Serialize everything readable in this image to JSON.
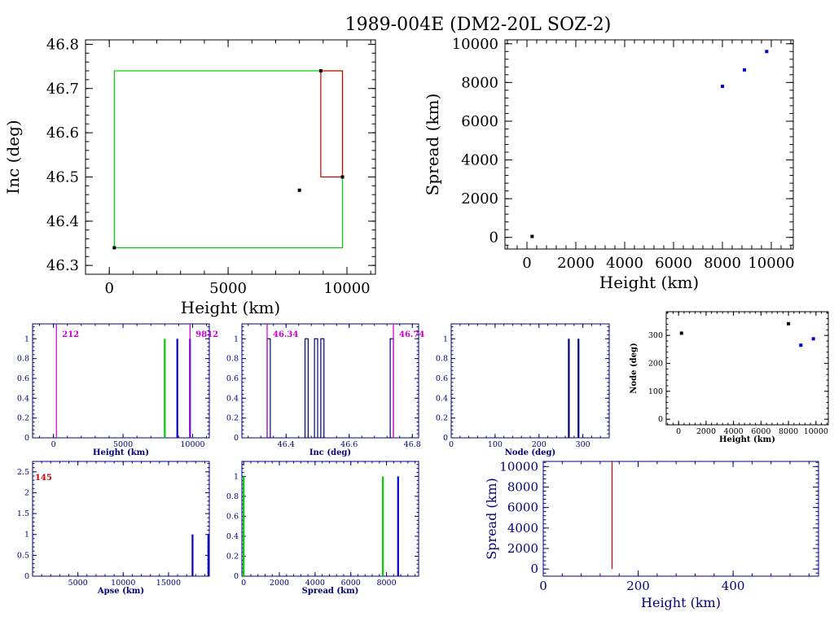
{
  "page": {
    "title": "1989-004E (DM2-20L SOZ-2)"
  },
  "colors": {
    "axis_black": "#000000",
    "axis_navy": "#000080",
    "blue": "#0000cc",
    "green": "#00cc00",
    "red": "#cc0000",
    "magenta": "#cc00cc"
  },
  "chart_data": [
    {
      "id": "inc-height",
      "type": "scatter",
      "xlabel": "Height (km)",
      "ylabel": "Inc (deg)",
      "xlim": [
        -1000,
        11200
      ],
      "ylim": [
        46.28,
        46.81
      ],
      "xticks": [
        0,
        5000,
        10000
      ],
      "yticks": [
        46.3,
        46.4,
        46.5,
        46.6,
        46.7,
        46.8
      ],
      "points": [
        [
          212,
          46.34
        ],
        [
          8000,
          46.47
        ],
        [
          8900,
          46.74
        ],
        [
          9812,
          46.5
        ]
      ],
      "boxes": [
        {
          "color": "green",
          "x": [
            212,
            9812
          ],
          "y": [
            46.34,
            46.74
          ]
        },
        {
          "color": "red",
          "x": [
            8900,
            9812
          ],
          "y": [
            46.5,
            46.74
          ]
        }
      ]
    },
    {
      "id": "spread-height",
      "type": "scatter",
      "xlabel": "Height (km)",
      "ylabel": "Spread (km)",
      "xlim": [
        -900,
        10900
      ],
      "ylim": [
        -600,
        10200
      ],
      "xticks": [
        0,
        2000,
        4000,
        6000,
        8000,
        10000
      ],
      "yticks": [
        0,
        2000,
        4000,
        6000,
        8000,
        10000
      ],
      "points": [
        [
          212,
          50
        ],
        [
          8000,
          7800
        ],
        [
          8900,
          8650
        ],
        [
          9812,
          9600
        ]
      ]
    },
    {
      "id": "hist-height",
      "type": "bar",
      "xlabel": "Height (km)",
      "xlim": [
        -1500,
        11200
      ],
      "ylim": [
        0,
        1.15
      ],
      "xticks": [
        0,
        5000,
        10000
      ],
      "yticks": [
        0,
        0.2,
        0.4,
        0.6,
        0.8,
        1
      ],
      "bars": [
        {
          "x": 8000,
          "y": 1,
          "color": "green"
        },
        {
          "x": 8900,
          "y": 1,
          "color": "blue"
        },
        {
          "x": 9812,
          "y": 1,
          "color": "blue"
        }
      ],
      "markers": [
        {
          "x": 212,
          "label": "212"
        },
        {
          "x": 9812,
          "label": "9812"
        }
      ]
    },
    {
      "id": "hist-inc",
      "type": "bar",
      "xlabel": "Inc (deg)",
      "xlim": [
        46.26,
        46.82
      ],
      "ylim": [
        0,
        1.15
      ],
      "xticks": [
        46.4,
        46.6,
        46.8
      ],
      "yticks": [
        0,
        0.2,
        0.4,
        0.6,
        0.8,
        1
      ],
      "boxbars": [
        [
          46.34,
          46.35
        ],
        [
          46.46,
          46.47
        ],
        [
          46.49,
          46.5
        ],
        [
          46.51,
          46.52
        ],
        [
          46.73,
          46.74
        ]
      ],
      "markers": [
        {
          "x": 46.34,
          "label": "46.34"
        },
        {
          "x": 46.74,
          "label": "46.74"
        }
      ]
    },
    {
      "id": "hist-node",
      "type": "bar",
      "xlabel": "Node (deg)",
      "xlim": [
        0,
        360
      ],
      "ylim": [
        0,
        1.15
      ],
      "xticks": [
        0,
        100,
        200,
        300
      ],
      "yticks": [
        0,
        0.2,
        0.4,
        0.6,
        0.8,
        1
      ],
      "bars": [
        {
          "x": 268,
          "y": 1,
          "color": "navy"
        },
        {
          "x": 290,
          "y": 1,
          "color": "navy"
        }
      ]
    },
    {
      "id": "node-height",
      "type": "scatter",
      "xlabel": "Height (km)",
      "ylabel": "Node (deg)",
      "xlim": [
        -900,
        10900
      ],
      "ylim": [
        -20,
        385
      ],
      "xticks": [
        0,
        2000,
        4000,
        6000,
        8000,
        10000
      ],
      "yticks": [
        0,
        100,
        200,
        300
      ],
      "points": [
        [
          212,
          308
        ],
        [
          8000,
          342
        ],
        [
          8900,
          265
        ],
        [
          9812,
          288
        ]
      ]
    },
    {
      "id": "hist-apse",
      "type": "bar",
      "xlabel": "Apse (km)",
      "xlim": [
        0,
        19500
      ],
      "ylim": [
        0,
        2.75
      ],
      "xticks": [
        5000,
        10000,
        15000
      ],
      "yticks": [
        0,
        0.5,
        1,
        1.5,
        2,
        2.5
      ],
      "bars": [
        {
          "x": 17650,
          "y": 1,
          "color": "blue"
        },
        {
          "x": 19400,
          "y": 1,
          "color": "blue"
        }
      ],
      "markers": [
        {
          "x": 0,
          "label": "145"
        }
      ]
    },
    {
      "id": "hist-spread",
      "type": "bar",
      "xlabel": "Spread (km)",
      "xlim": [
        -100,
        9800
      ],
      "ylim": [
        0,
        1.15
      ],
      "xticks": [
        0,
        2000,
        4000,
        6000,
        8000
      ],
      "yticks": [
        0,
        0.2,
        0.4,
        0.6,
        0.8,
        1
      ],
      "bars": [
        {
          "x": 0,
          "y": 1,
          "color": "green"
        },
        {
          "x": 7800,
          "y": 1,
          "color": "green"
        },
        {
          "x": 8650,
          "y": 1,
          "color": "blue"
        }
      ]
    },
    {
      "id": "spread-height-low",
      "type": "line",
      "xlabel": "Height (km)",
      "ylabel": "Spread (km)",
      "xlim": [
        0,
        580
      ],
      "ylim": [
        -700,
        10500
      ],
      "xticks": [
        0,
        200,
        400
      ],
      "yticks": [
        0,
        2000,
        4000,
        6000,
        8000,
        10000
      ],
      "lines": [
        {
          "x": [
            145,
            145
          ],
          "y": [
            0,
            10500
          ],
          "color": "red"
        }
      ]
    }
  ]
}
